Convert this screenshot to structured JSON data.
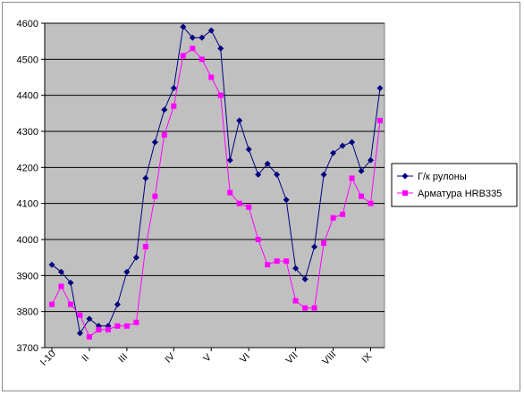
{
  "chart_data": {
    "type": "line",
    "title": "",
    "xlabel": "",
    "ylabel": "",
    "ylim": [
      3700,
      4600
    ],
    "yticks": [
      3700,
      3800,
      3900,
      4000,
      4100,
      4200,
      4300,
      4400,
      4500,
      4600
    ],
    "grid": true,
    "legend_position": "right",
    "plot_background": "#c0c0c0",
    "x_tick_labels": [
      {
        "index": 0,
        "label": "I-10"
      },
      {
        "index": 4,
        "label": "II"
      },
      {
        "index": 8,
        "label": "III"
      },
      {
        "index": 13,
        "label": "IV"
      },
      {
        "index": 17,
        "label": "V"
      },
      {
        "index": 21,
        "label": "VI"
      },
      {
        "index": 26,
        "label": "VII"
      },
      {
        "index": 30,
        "label": "VIII"
      },
      {
        "index": 34,
        "label": "IX"
      }
    ],
    "series": [
      {
        "name": "Г/к рулоны",
        "color": "#000080",
        "marker": "diamond",
        "values": [
          3930,
          3910,
          3880,
          3740,
          3780,
          3760,
          3760,
          3820,
          3910,
          3950,
          4170,
          4270,
          4360,
          4420,
          4590,
          4560,
          4560,
          4580,
          4530,
          4220,
          4330,
          4250,
          4180,
          4210,
          4180,
          4110,
          3920,
          3890,
          3980,
          4180,
          4240,
          4260,
          4270,
          4190,
          4220,
          4420
        ]
      },
      {
        "name": "Арматура HRB335",
        "color": "#ff00ff",
        "marker": "square",
        "values": [
          3820,
          3870,
          3820,
          3790,
          3730,
          3750,
          3750,
          3760,
          3760,
          3770,
          3980,
          4120,
          4290,
          4370,
          4510,
          4530,
          4500,
          4450,
          4400,
          4130,
          4100,
          4090,
          4000,
          3930,
          3940,
          3940,
          3830,
          3810,
          3810,
          3990,
          4060,
          4070,
          4170,
          4120,
          4100,
          4330
        ]
      }
    ]
  }
}
